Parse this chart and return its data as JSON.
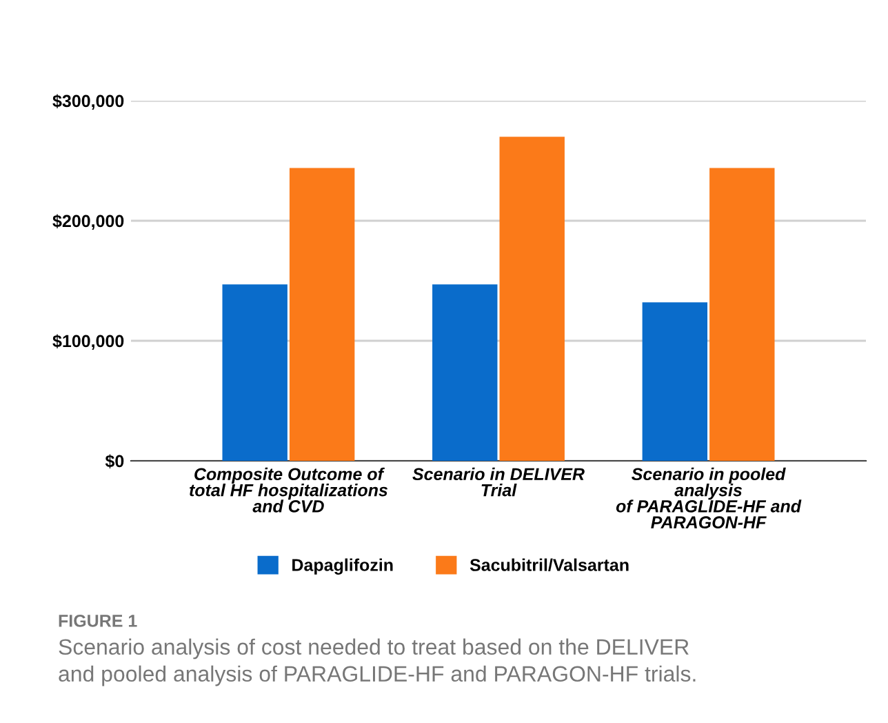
{
  "chart_data": {
    "type": "bar",
    "categories": [
      "Composite Outcome of\ntotal HF hospitalizations\nand CVD",
      "Scenario in DELIVER\nTrial",
      "Scenario in pooled\nanalysis\nof PARAGLIDE-HF and\nPARAGON-HF"
    ],
    "series": [
      {
        "name": "Dapaglifozin",
        "color": "#0a6ccb",
        "values": [
          147000,
          147000,
          132000
        ]
      },
      {
        "name": "Sacubitril/Valsartan",
        "color": "#fb7a19",
        "values": [
          244000,
          270000,
          244000
        ]
      }
    ],
    "ylim": [
      0,
      300000
    ],
    "yticks": [
      {
        "value": 0,
        "label": "$0"
      },
      {
        "value": 100000,
        "label": "$100,000"
      },
      {
        "value": 200000,
        "label": "$200,000"
      },
      {
        "value": 300000,
        "label": "$300,000"
      }
    ],
    "grid": "y",
    "legend": "bottom",
    "annotations": [
      "FIGURE 1",
      "Scenario analysis of cost needed to treat based on the DELIVER\nand pooled analysis of PARAGLIDE-HF and PARAGON-HF trials."
    ]
  }
}
